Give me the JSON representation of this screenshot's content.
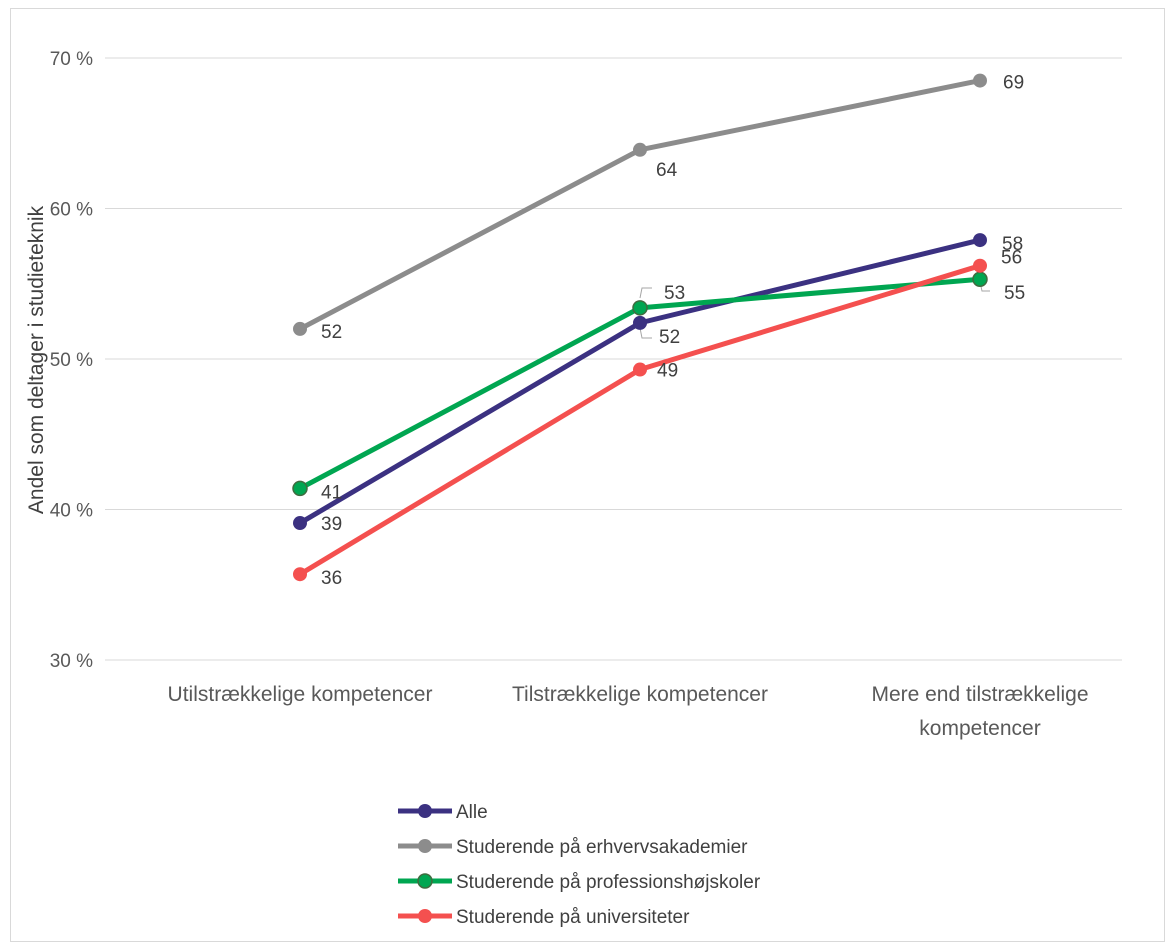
{
  "chart_data": {
    "type": "line",
    "title": "",
    "xlabel": "",
    "ylabel": "Andel som deltager i studieteknik",
    "ylim": [
      30,
      70
    ],
    "yticks": [
      "30 %",
      "40 %",
      "50 %",
      "60 %",
      "70 %"
    ],
    "categories": [
      [
        "Utilstrækkelige kompetencer"
      ],
      [
        "Tilstrækkelige kompetencer"
      ],
      [
        "Mere end tilstrækkelige",
        "kompetencer"
      ]
    ],
    "series": [
      {
        "name": "Alle",
        "values": [
          39.1,
          52.4,
          57.9
        ],
        "labels": [
          "39",
          "52",
          "58"
        ],
        "color": "#3b3181"
      },
      {
        "name": "Studerende på erhvervsakademier",
        "values": [
          52.0,
          63.9,
          68.5
        ],
        "labels": [
          "52",
          "64",
          "69"
        ],
        "color": "#8c8c8c"
      },
      {
        "name": "Studerende på professionshøjskoler",
        "values": [
          41.4,
          53.4,
          55.3
        ],
        "labels": [
          "41",
          "53",
          "55"
        ],
        "color": "#00a651"
      },
      {
        "name": "Studerende på universiteter",
        "values": [
          35.7,
          49.3,
          56.2
        ],
        "labels": [
          "36",
          "49",
          "56"
        ],
        "color": "#f4504f"
      }
    ],
    "grid": true,
    "legend_position": "bottom"
  }
}
